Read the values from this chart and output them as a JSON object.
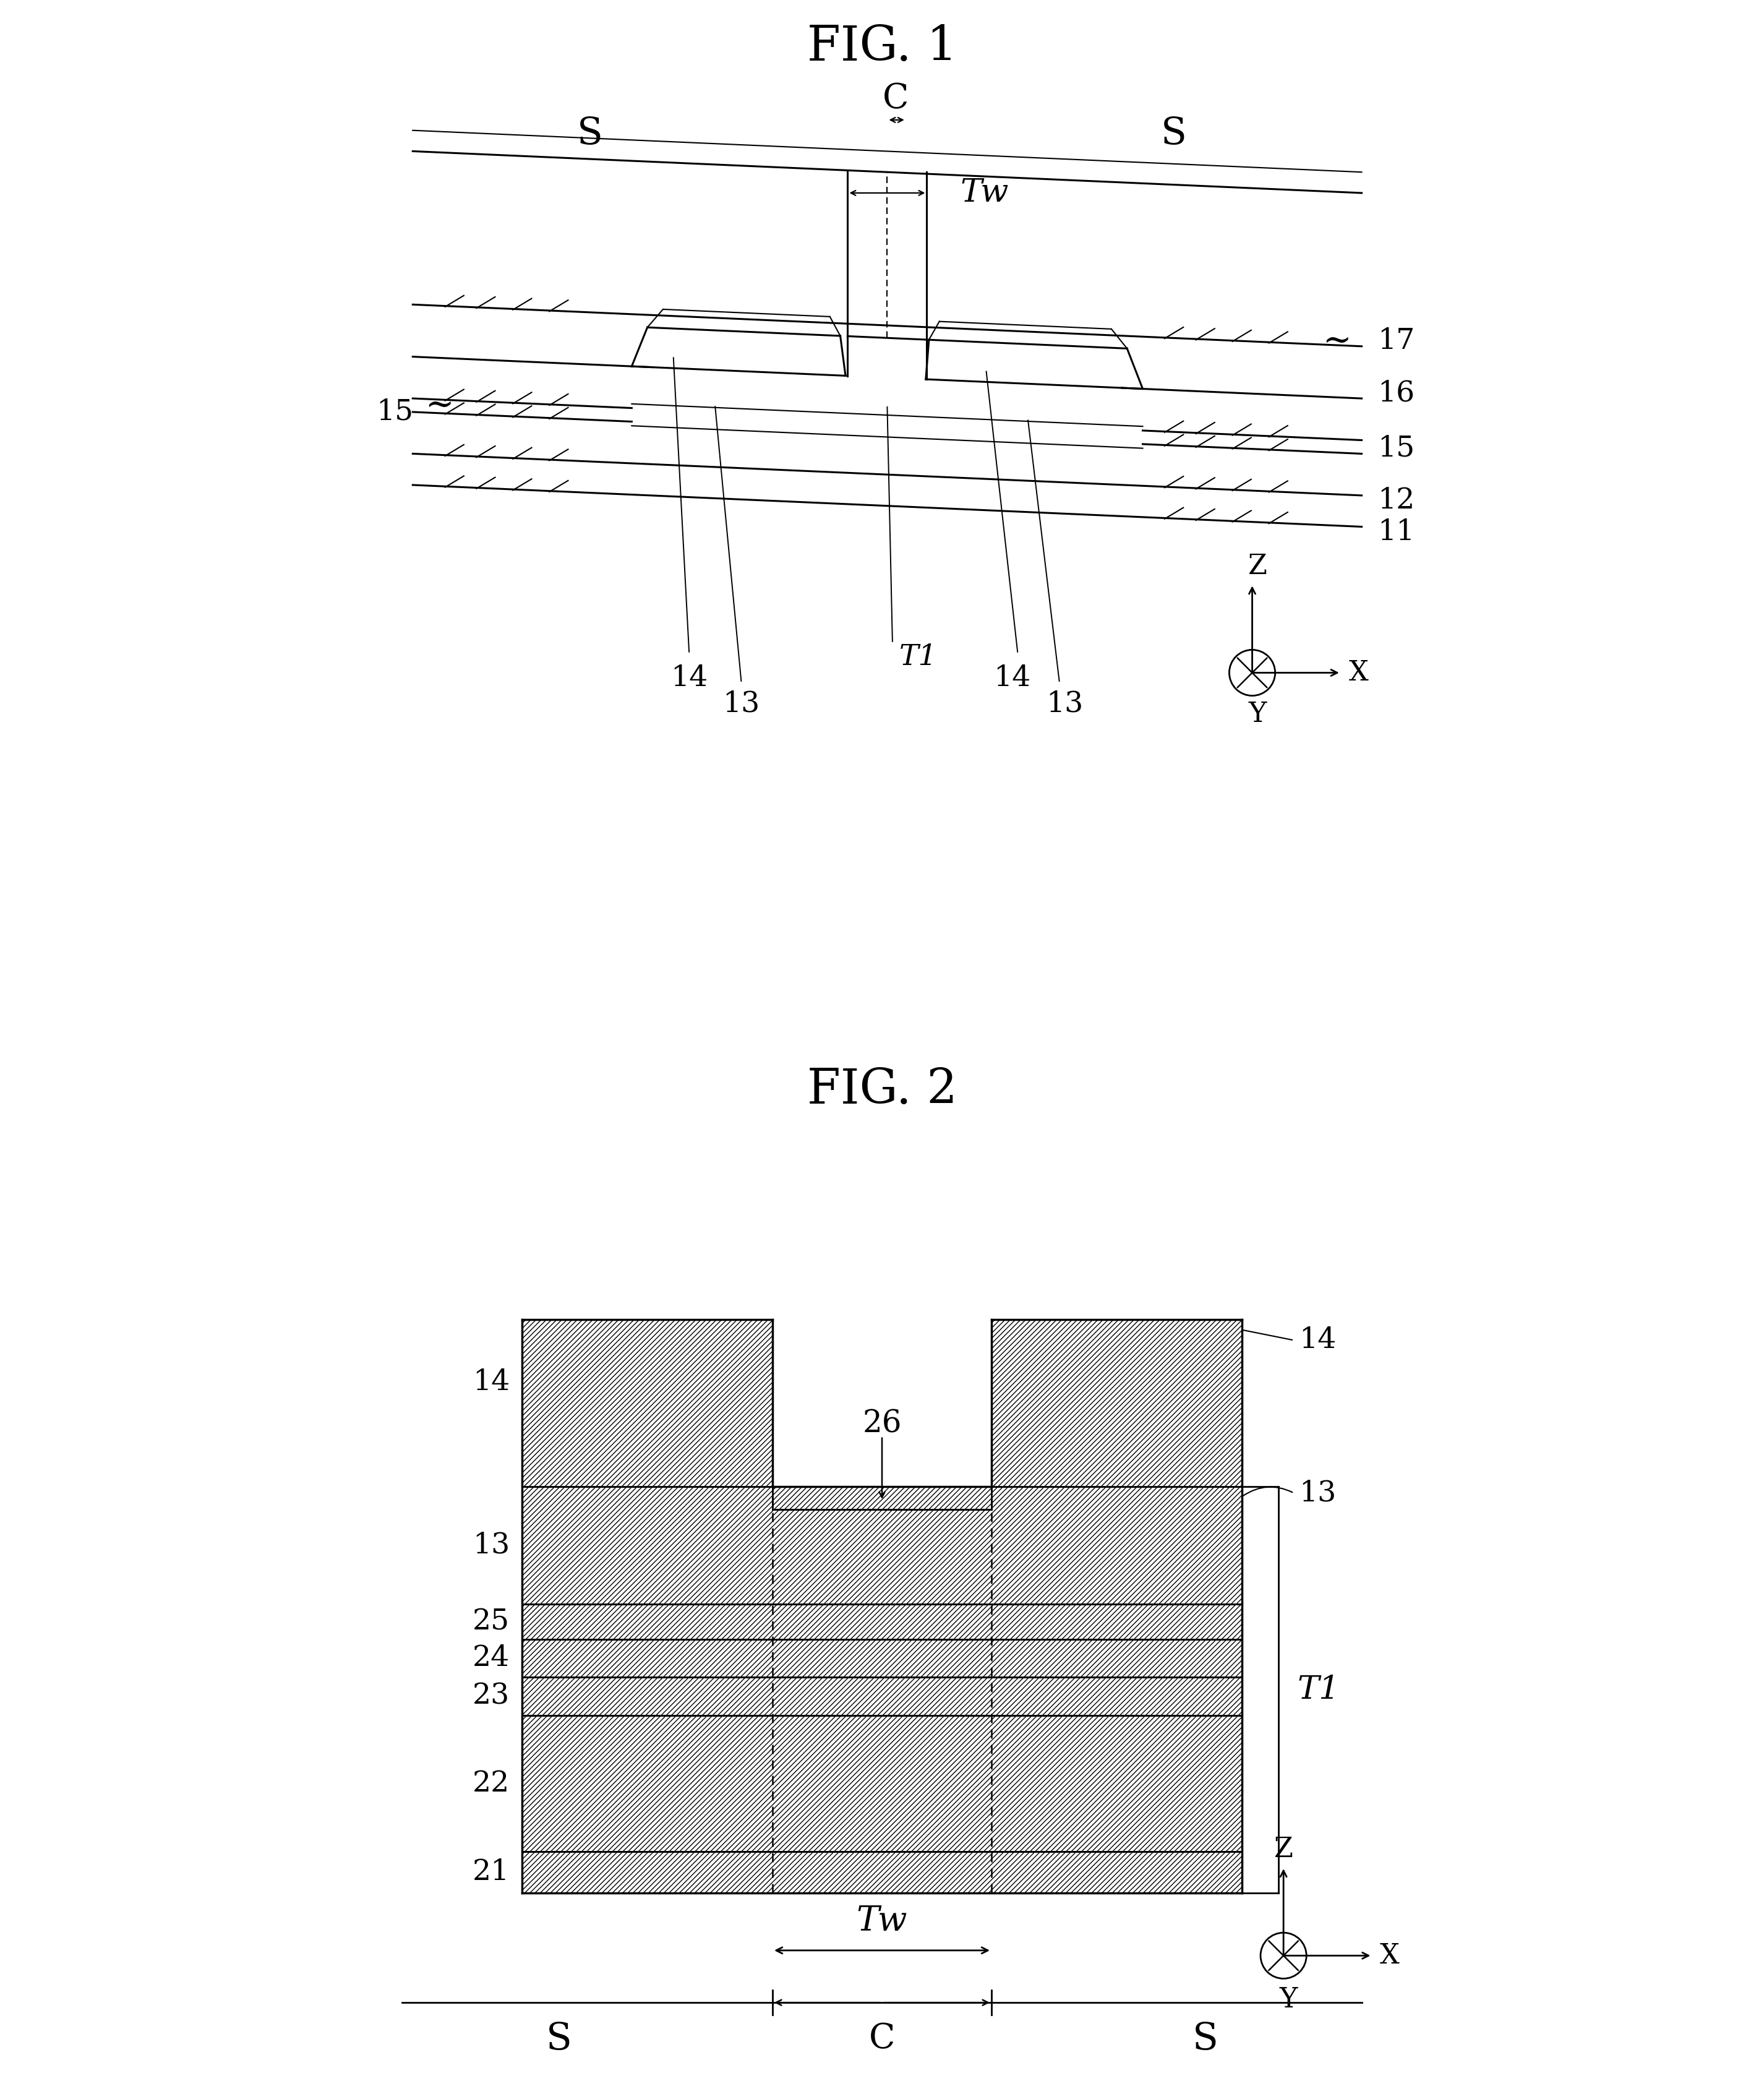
{
  "fig1_title": "FIG. 1",
  "fig2_title": "FIG. 2",
  "bg_color": "#ffffff",
  "line_color": "#000000",
  "fig1": {
    "S_left": "S",
    "S_right": "S",
    "C": "C",
    "Tw": "Tw",
    "labels_right": [
      "17",
      "16",
      "15",
      "12",
      "11"
    ],
    "label_15_left": "15",
    "label_14_left": "14",
    "label_13_left": "13",
    "label_T1": "T1",
    "label_14_right": "14",
    "label_13_right": "13"
  },
  "fig2": {
    "num_14_left": "14",
    "num_14_right": "14",
    "num_13_left": "13",
    "num_13_right": "13",
    "num_25": "25",
    "num_24": "24",
    "num_23": "23",
    "num_22": "22",
    "num_21": "21",
    "num_26": "26",
    "T1": "T1",
    "Tw": "Tw",
    "C": "C",
    "S_left": "S",
    "S_right": "S"
  }
}
